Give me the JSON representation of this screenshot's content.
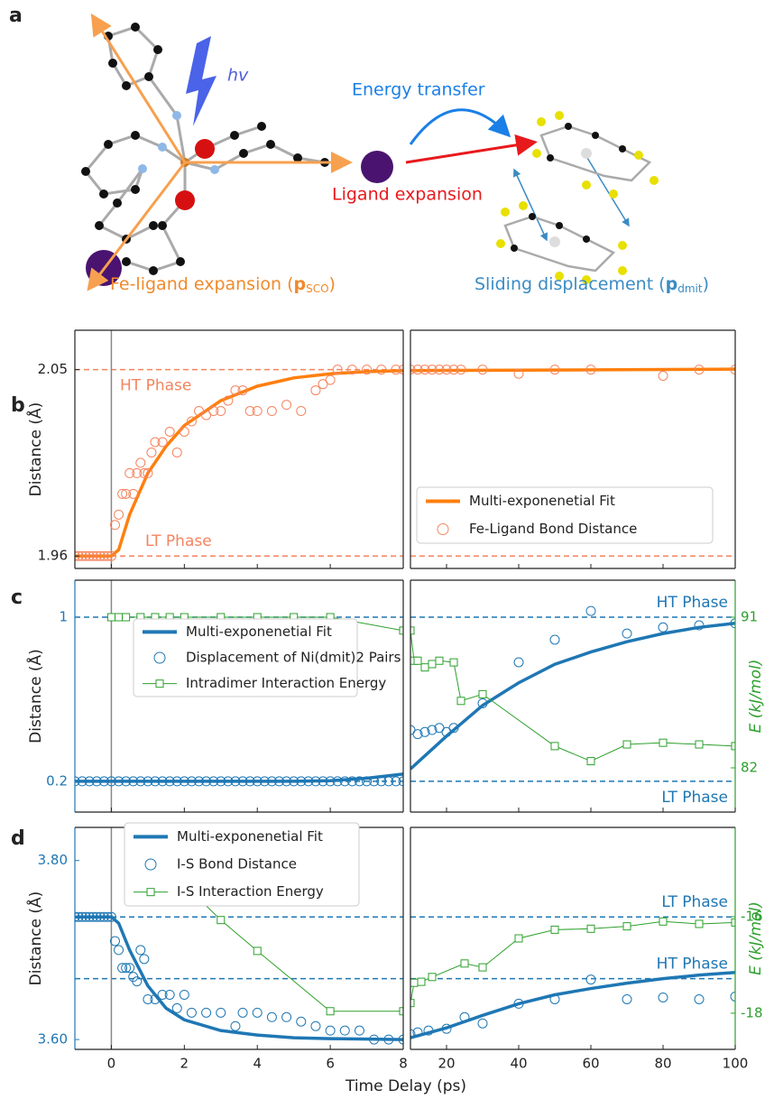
{
  "panel_a": {
    "label": "a",
    "hv": "hv",
    "energy": "Energy transfer",
    "ligand": "Ligand expansion",
    "fe": {
      "text": "Fe-ligand expansion (",
      "bold": "p",
      "sub": "SCO",
      "end": ")"
    },
    "sliding": {
      "text": "Sliding displacement (",
      "bold": "p",
      "sub": "dmit",
      "end": ")"
    }
  },
  "xlabel": "Time Delay (ps)",
  "chart_data": [
    {
      "type": "line",
      "label": "b",
      "ylabel": "Distance (Å)",
      "xlim": [
        -1,
        8
      ],
      "xticks": [
        0,
        2,
        4,
        6,
        8
      ],
      "show_xtick_labels": false,
      "ylim": [
        1.954,
        2.069
      ],
      "yticks": [
        1.96,
        2.05
      ],
      "vline": 0,
      "hline_color": "#f4845f",
      "hlines": [
        {
          "value": 2.05,
          "label": "HT Phase"
        },
        {
          "value": 1.96,
          "label": "LT Phase"
        }
      ],
      "series": [
        {
          "style": "line",
          "color": "#ff7f0e",
          "x": [
            -1,
            0,
            0.2,
            0.5,
            1,
            1.5,
            2,
            3,
            4,
            5,
            6,
            7,
            8
          ],
          "values": [
            1.96,
            1.96,
            1.963,
            1.98,
            2.0,
            2.013,
            2.023,
            2.035,
            2.042,
            2.046,
            2.048,
            2.049,
            2.0495
          ]
        },
        {
          "style": "markers",
          "color": "#f4845f",
          "x": [
            -1,
            -0.9,
            -0.8,
            -0.7,
            -0.6,
            -0.5,
            -0.4,
            -0.3,
            -0.2,
            -0.1,
            0,
            0.1,
            0.2,
            0.3,
            0.4,
            0.5,
            0.6,
            0.7,
            0.8,
            0.9,
            1.0,
            1.1,
            1.2,
            1.4,
            1.6,
            1.8,
            2.0,
            2.2,
            2.4,
            2.6,
            2.8,
            3.0,
            3.2,
            3.4,
            3.6,
            3.8,
            4.0,
            4.4,
            4.8,
            5.2,
            5.6,
            5.8,
            6.0,
            6.2,
            6.6,
            7.0,
            7.4,
            7.8,
            8.0
          ],
          "values": [
            1.96,
            1.96,
            1.96,
            1.96,
            1.96,
            1.96,
            1.96,
            1.96,
            1.96,
            1.96,
            1.96,
            1.975,
            1.98,
            1.99,
            1.99,
            2.0,
            1.99,
            2.0,
            2.005,
            2.0,
            2.0,
            2.01,
            2.015,
            2.015,
            2.02,
            2.01,
            2.02,
            2.025,
            2.03,
            2.028,
            2.03,
            2.03,
            2.035,
            2.04,
            2.04,
            2.03,
            2.03,
            2.03,
            2.033,
            2.03,
            2.04,
            2.043,
            2.045,
            2.05,
            2.05,
            2.05,
            2.05,
            2.05,
            2.05
          ]
        }
      ]
    },
    {
      "type": "line",
      "xlim": [
        10,
        100
      ],
      "xticks": [
        20,
        40,
        60,
        80,
        100
      ],
      "show_xtick_labels": false,
      "ylim": [
        1.954,
        2.069
      ],
      "hline_color": "#f4845f",
      "hlines": [
        {
          "value": 2.05
        },
        {
          "value": 1.96
        }
      ],
      "series": [
        {
          "name": "Multi-exponenetial Fit",
          "style": "line",
          "color": "#ff7f0e",
          "x": [
            10,
            100
          ],
          "values": [
            2.0495,
            2.0502
          ]
        },
        {
          "name": "Fe-Ligand Bond Distance",
          "style": "markers",
          "color": "#f4845f",
          "x": [
            10,
            12,
            14,
            16,
            18,
            20,
            22,
            24,
            30,
            40,
            50,
            60,
            80,
            90,
            100
          ],
          "values": [
            2.05,
            2.05,
            2.05,
            2.05,
            2.05,
            2.05,
            2.05,
            2.05,
            2.05,
            2.048,
            2.05,
            2.05,
            2.047,
            2.05,
            2.05
          ]
        }
      ]
    },
    {
      "type": "line",
      "label": "c",
      "ylabel": "Distance (Å)",
      "axis_color": "#1f77b4",
      "xlim": [
        -1,
        8
      ],
      "xticks": [
        0,
        2,
        4,
        6,
        8
      ],
      "show_xtick_labels": false,
      "ylim": [
        0.05,
        1.18
      ],
      "yticks": [
        0.2,
        1.0
      ],
      "y2lim": [
        79.36,
        93.21
      ],
      "vline": 0,
      "hline_color": "#1f77b4",
      "hlines": [
        {
          "value": 1.0
        },
        {
          "value": 0.2
        }
      ],
      "series": [
        {
          "name": "Multi-exponenetial Fit",
          "style": "line",
          "color": "#1f77b4",
          "x": [
            -1,
            5,
            6,
            7,
            8
          ],
          "values": [
            0.2,
            0.2,
            0.203,
            0.215,
            0.235
          ]
        },
        {
          "name": "Displacement of Ni(dmit)2 Pairs",
          "style": "markers",
          "color": "#1f77b4",
          "x": [
            -1,
            -0.8,
            -0.6,
            -0.4,
            -0.2,
            0,
            0.2,
            0.4,
            0.6,
            0.8,
            1,
            1.2,
            1.4,
            1.6,
            1.8,
            2,
            2.2,
            2.4,
            2.6,
            2.8,
            3,
            3.2,
            3.4,
            3.6,
            3.8,
            4,
            4.2,
            4.4,
            4.6,
            4.8,
            5,
            5.2,
            5.4,
            5.6,
            5.8,
            6,
            6.2,
            6.4,
            6.6,
            6.8,
            7,
            7.2,
            7.4,
            7.6,
            7.8,
            8
          ],
          "values": [
            0.2,
            0.2,
            0.2,
            0.2,
            0.2,
            0.2,
            0.2,
            0.2,
            0.2,
            0.2,
            0.2,
            0.2,
            0.2,
            0.2,
            0.2,
            0.2,
            0.2,
            0.2,
            0.2,
            0.2,
            0.2,
            0.2,
            0.2,
            0.2,
            0.2,
            0.2,
            0.2,
            0.2,
            0.2,
            0.2,
            0.2,
            0.2,
            0.2,
            0.2,
            0.2,
            0.2,
            0.2,
            0.2,
            0.2,
            0.2,
            0.2,
            0.2,
            0.2,
            0.2,
            0.2,
            0.2
          ]
        },
        {
          "name": "Intradimer Interaction Energy",
          "style": "line+markers",
          "color": "#2ca02c",
          "axis": "y2",
          "x": [
            0,
            0.2,
            0.4,
            0.8,
            1.2,
            1.6,
            2,
            3,
            4,
            5,
            6,
            8
          ],
          "values": [
            91,
            91,
            91,
            91,
            91,
            91,
            91,
            91,
            91,
            91,
            91,
            90.2
          ]
        }
      ]
    },
    {
      "type": "line",
      "y2label": "E (kJ/mol)",
      "y2_color": "#2ca02c",
      "xlim": [
        10,
        100
      ],
      "xticks": [
        20,
        40,
        60,
        80,
        100
      ],
      "show_xtick_labels": false,
      "ylim": [
        0.05,
        1.18
      ],
      "y2lim": [
        79.36,
        93.21
      ],
      "y2ticks": [
        82,
        91
      ],
      "hline_color": "#1f77b4",
      "hlines": [
        {
          "value": 1.0,
          "label": "HT Phase"
        },
        {
          "value": 0.2,
          "label": "LT Phase"
        }
      ],
      "series": [
        {
          "style": "markers",
          "color": "#1f77b4",
          "x": [
            10,
            12,
            14,
            16,
            18,
            20,
            22,
            30,
            40,
            50,
            60,
            70,
            80,
            90,
            100
          ],
          "values": [
            0.45,
            0.43,
            0.44,
            0.45,
            0.46,
            0.44,
            0.46,
            0.58,
            0.78,
            0.89,
            1.03,
            0.92,
            0.95,
            0.96,
            0.97
          ]
        },
        {
          "style": "line",
          "color": "#1f77b4",
          "x": [
            10,
            20,
            30,
            40,
            50,
            60,
            70,
            80,
            90,
            100
          ],
          "values": [
            0.26,
            0.42,
            0.57,
            0.68,
            0.77,
            0.83,
            0.88,
            0.92,
            0.95,
            0.97
          ]
        },
        {
          "style": "line+markers",
          "color": "#2ca02c",
          "axis": "y2",
          "x": [
            10,
            11,
            12,
            14,
            16,
            18,
            22,
            24,
            30,
            50,
            60,
            70,
            80,
            90,
            100
          ],
          "values": [
            90.2,
            88.4,
            88.4,
            88.0,
            88.2,
            88.4,
            88.3,
            86.0,
            86.4,
            83.3,
            82.4,
            83.4,
            83.5,
            83.4,
            83.3
          ]
        }
      ]
    },
    {
      "type": "line",
      "label": "d",
      "ylabel": "Distance (Å)",
      "axis_color": "#1f77b4",
      "xlim": [
        -1,
        8
      ],
      "xticks": [
        0,
        2,
        4,
        6,
        8
      ],
      "show_xtick_labels": true,
      "ylim": [
        3.589,
        3.837
      ],
      "yticks": [
        {
          "value": 3.6,
          "label": "3.60"
        },
        {
          "value": 3.8,
          "label": "3.80"
        }
      ],
      "y2lim": [
        -18.75,
        -14.15
      ],
      "vline": 0,
      "hline_color": "#1f77b4",
      "hlines": [
        {
          "value": 3.737
        },
        {
          "value": 3.668
        }
      ],
      "series": [
        {
          "name": "Multi-exponenetial Fit",
          "style": "line",
          "color": "#1f77b4",
          "x": [
            -1,
            0,
            0.2,
            0.5,
            1,
            1.5,
            2,
            3,
            4,
            5,
            6,
            8
          ],
          "values": [
            3.737,
            3.737,
            3.73,
            3.7,
            3.66,
            3.635,
            3.622,
            3.61,
            3.605,
            3.602,
            3.601,
            3.6
          ]
        },
        {
          "name": "I-S Bond Distance",
          "style": "markers",
          "color": "#1f77b4",
          "x": [
            -1,
            -0.9,
            -0.8,
            -0.7,
            -0.6,
            -0.5,
            -0.4,
            -0.3,
            -0.2,
            -0.1,
            0,
            0.1,
            0.2,
            0.3,
            0.4,
            0.5,
            0.6,
            0.7,
            0.8,
            0.9,
            1.0,
            1.2,
            1.4,
            1.6,
            1.8,
            2.0,
            2.2,
            2.6,
            3.0,
            3.4,
            3.6,
            4.0,
            4.4,
            4.8,
            5.2,
            5.6,
            6.0,
            6.4,
            6.8,
            7.2,
            7.6,
            8.0
          ],
          "values": [
            3.737,
            3.737,
            3.737,
            3.737,
            3.737,
            3.737,
            3.737,
            3.737,
            3.737,
            3.737,
            3.737,
            3.71,
            3.7,
            3.68,
            3.68,
            3.68,
            3.67,
            3.665,
            3.7,
            3.69,
            3.645,
            3.645,
            3.65,
            3.65,
            3.635,
            3.65,
            3.63,
            3.63,
            3.63,
            3.615,
            3.63,
            3.63,
            3.625,
            3.625,
            3.62,
            3.615,
            3.61,
            3.61,
            3.61,
            3.6,
            3.6,
            3.6
          ]
        },
        {
          "name": "I-S Interaction Energy",
          "style": "line+markers",
          "color": "#2ca02c",
          "axis": "y2",
          "x": [
            2,
            3,
            4,
            6,
            8
          ],
          "values": [
            -15.33,
            -16.07,
            -16.71,
            -17.96,
            -17.96
          ]
        }
      ]
    },
    {
      "type": "line",
      "y2label": "E (kJ/mol)",
      "y2_color": "#2ca02c",
      "xlim": [
        10,
        100
      ],
      "xticks": [
        20,
        40,
        60,
        80,
        100
      ],
      "show_xtick_labels": true,
      "ylim": [
        3.589,
        3.837
      ],
      "y2lim": [
        -18.75,
        -14.15
      ],
      "y2ticks": [
        -16,
        -18
      ],
      "hline_color": "#1f77b4",
      "hlines": [
        {
          "value": 3.737,
          "label": "LT Phase"
        },
        {
          "value": 3.668,
          "label": "HT Phase"
        }
      ],
      "series": [
        {
          "style": "markers",
          "color": "#1f77b4",
          "x": [
            10,
            12,
            15,
            20,
            25,
            30,
            40,
            50,
            60,
            70,
            80,
            90,
            100
          ],
          "values": [
            3.606,
            3.608,
            3.61,
            3.612,
            3.625,
            3.618,
            3.64,
            3.645,
            3.667,
            3.645,
            3.647,
            3.645,
            3.648
          ]
        },
        {
          "style": "line",
          "color": "#1f77b4",
          "x": [
            10,
            20,
            30,
            40,
            50,
            60,
            70,
            80,
            90,
            100
          ],
          "values": [
            3.602,
            3.613,
            3.627,
            3.64,
            3.65,
            3.657,
            3.663,
            3.668,
            3.672,
            3.675
          ]
        },
        {
          "style": "line+markers",
          "color": "#2ca02c",
          "axis": "y2",
          "x": [
            10,
            11,
            13,
            16,
            25,
            30,
            40,
            50,
            60,
            70,
            80,
            90,
            100
          ],
          "values": [
            -17.79,
            -17.37,
            -17.35,
            -17.25,
            -16.97,
            -17.05,
            -16.45,
            -16.27,
            -16.25,
            -16.2,
            -16.1,
            -16.15,
            -16.12
          ]
        }
      ]
    }
  ]
}
